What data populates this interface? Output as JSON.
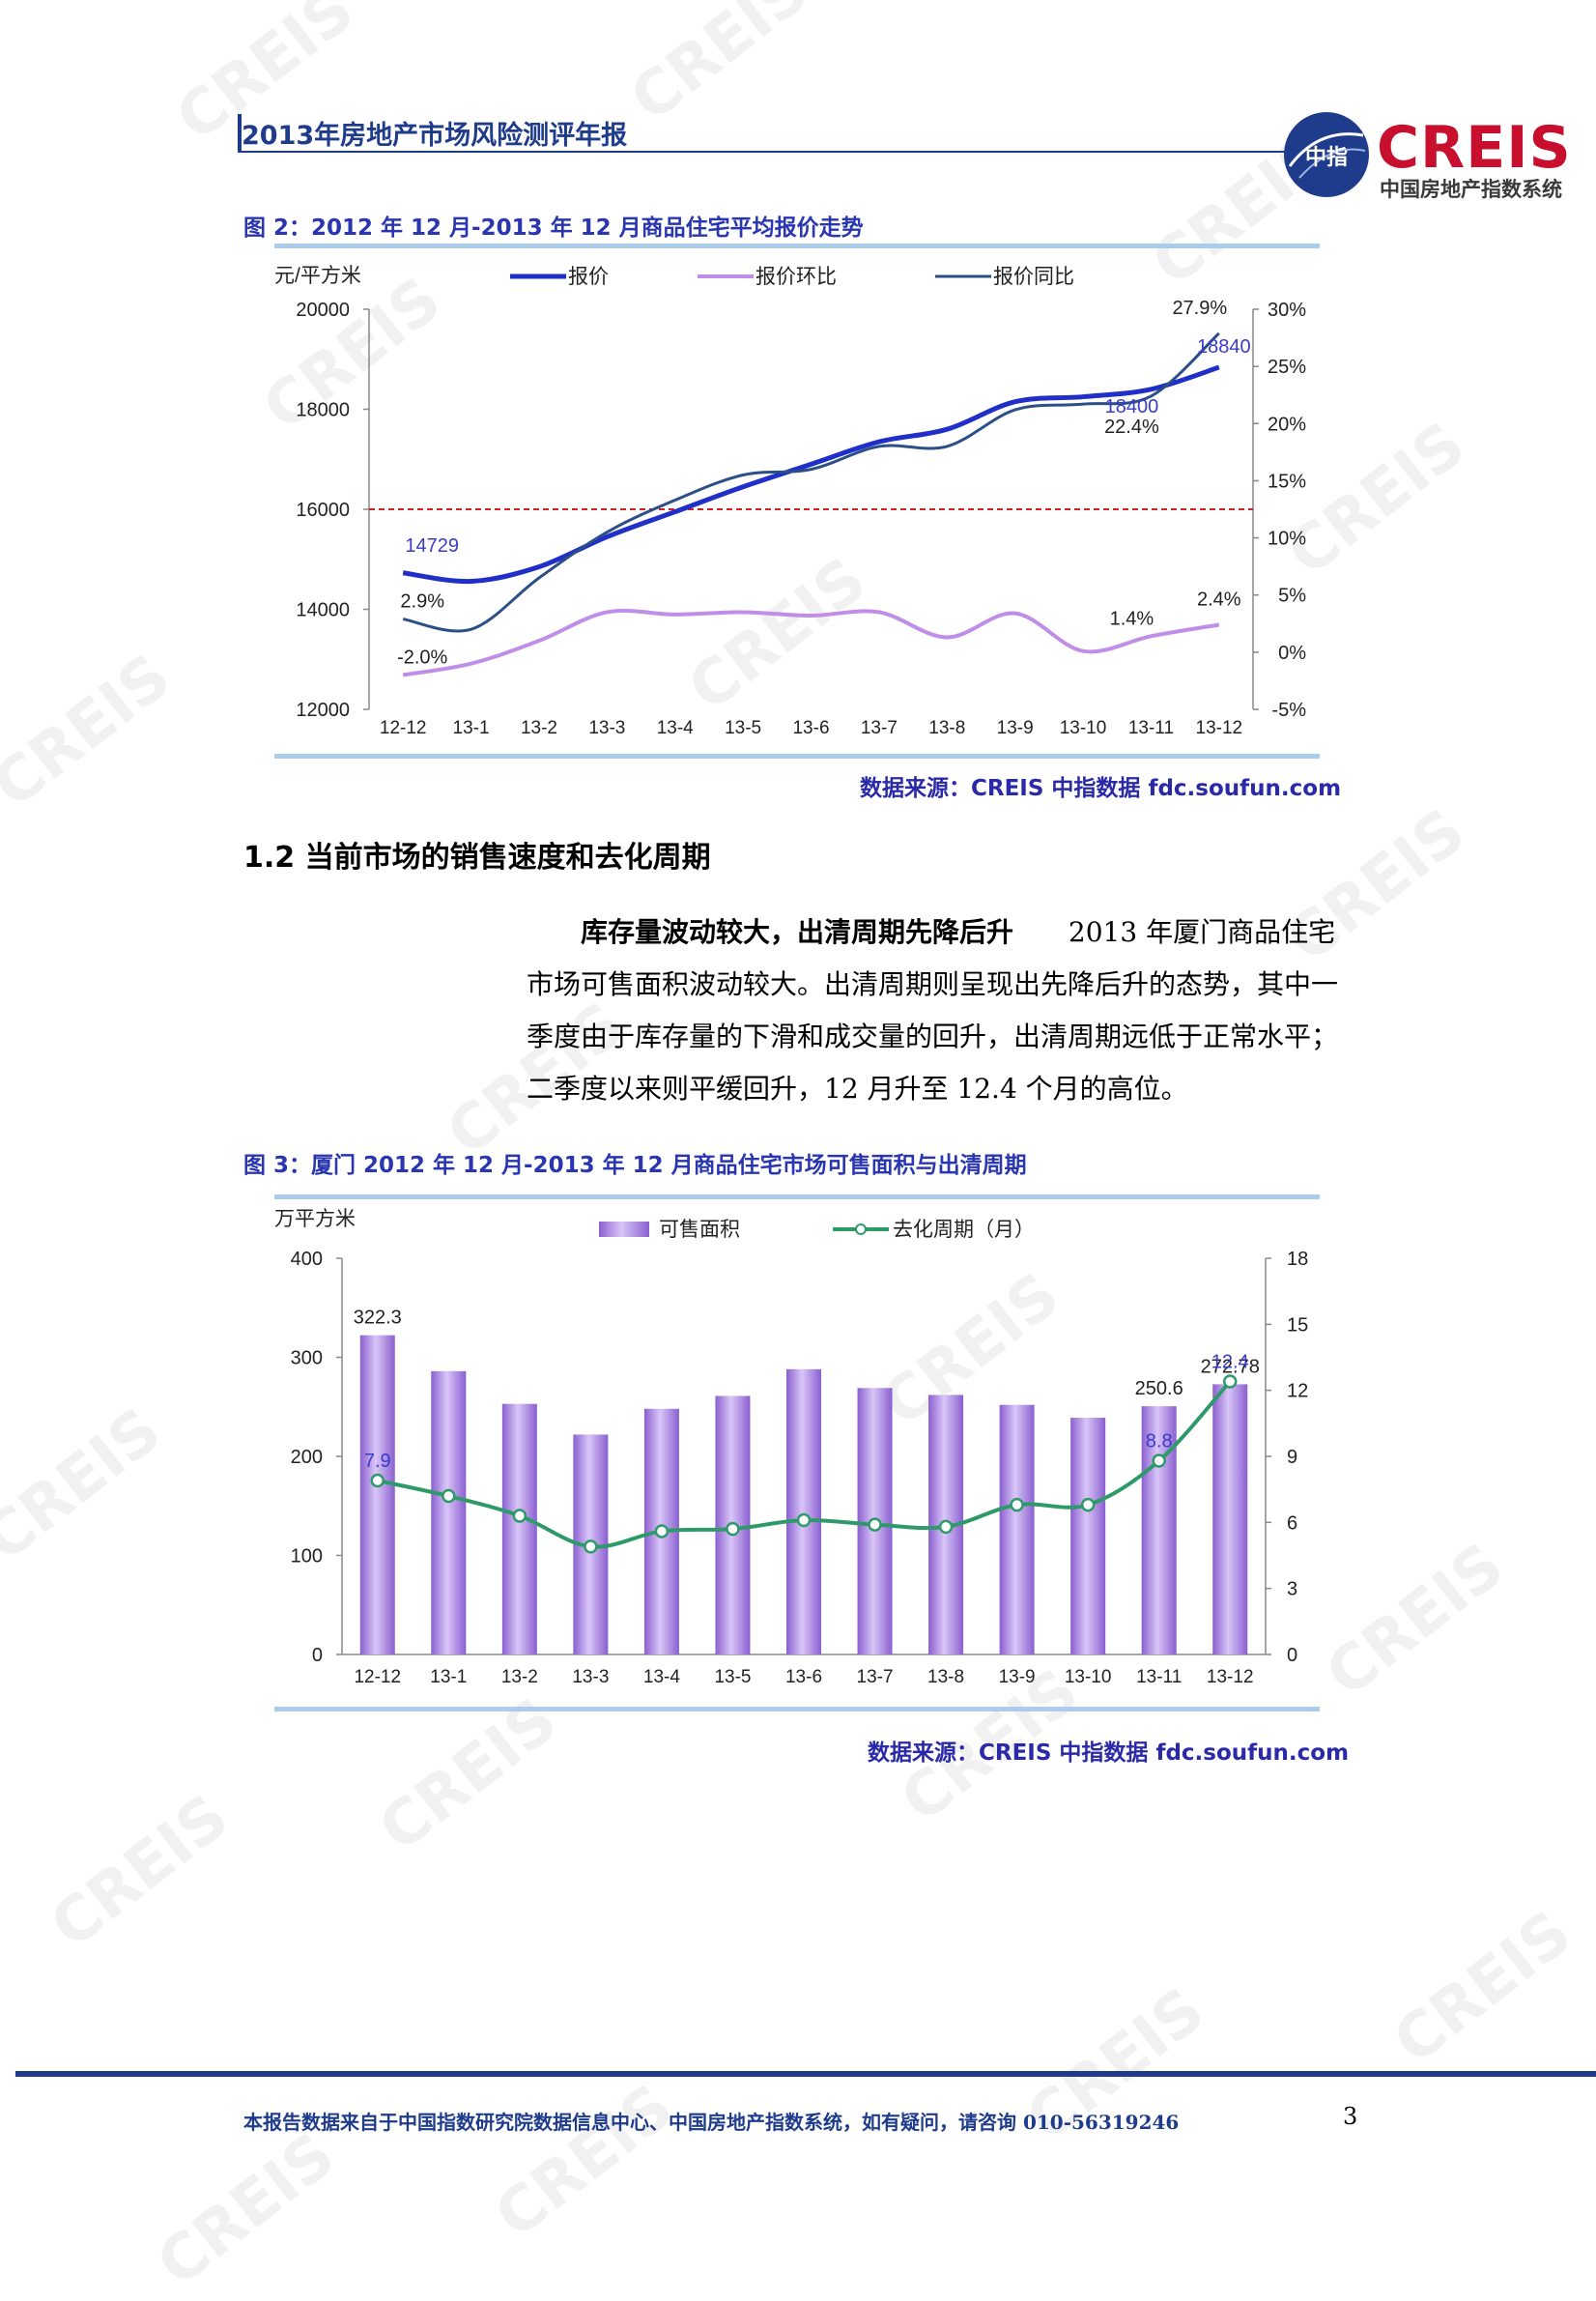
{
  "header": {
    "title": "2013年房地产市场风险测评年报",
    "logo_text": "CREIS",
    "logo_subtitle": "中国房地产指数系统",
    "logo_glyph": "中指",
    "brand_color": "#1f3c8c",
    "logo_color": "#c8102e"
  },
  "watermark": {
    "text": "CREIS"
  },
  "figure2": {
    "title": "图 2：2012 年 12 月-2013 年 12 月商品住宅平均报价走势",
    "source": "数据来源：CREIS 中指数据 fdc.soufun.com"
  },
  "section": {
    "heading": "1.2 当前市场的销售速度和去化周期",
    "lead": "库存量波动较大，出清周期先降后升",
    "text_line1": "2013 年厦门商品住宅",
    "text_line2": "市场可售面积波动较大。出清周期则呈现出先降后升的态势，其中一",
    "text_line3": "季度由于库存量的下滑和成交量的回升，出清周期远低于正常水平；",
    "text_line4": "二季度以来则平缓回升，12 月升至 12.4 个月的高位。"
  },
  "figure3": {
    "title": "图 3：厦门 2012 年 12 月-2013 年 12 月商品住宅市场可售面积与出清周期",
    "source": "数据来源：CREIS 中指数据 fdc.soufun.com"
  },
  "footer": {
    "text": "本报告数据来自于中国指数研究院数据信息中心、中国房地产指数系统，如有疑问，请咨询 010-56319246",
    "page": "3"
  },
  "chart_data": [
    {
      "type": "line",
      "ylabel_left": "元/平方米",
      "ylim_left": [
        12000,
        20000
      ],
      "yticks_left": [
        "20000",
        "18000",
        "16000",
        "14000",
        "12000"
      ],
      "ylim_right": [
        -5,
        30
      ],
      "yticks_right": [
        "30%",
        "25%",
        "20%",
        "15%",
        "10%",
        "5%",
        "0%",
        "-5%"
      ],
      "categories": [
        "12-12",
        "13-1",
        "13-2",
        "13-3",
        "13-4",
        "13-5",
        "13-6",
        "13-7",
        "13-8",
        "13-9",
        "13-10",
        "13-11",
        "13-12"
      ],
      "series": [
        {
          "name": "报价",
          "axis": "left",
          "color": "#1f2fc8",
          "values": [
            14729,
            14560,
            14850,
            15450,
            15950,
            16450,
            16900,
            17350,
            17600,
            18150,
            18250,
            18400,
            18840
          ]
        },
        {
          "name": "报价环比",
          "axis": "right",
          "color": "#c08ee8",
          "values": [
            -2.0,
            -1.0,
            1.0,
            3.5,
            3.3,
            3.5,
            3.2,
            3.5,
            1.3,
            3.4,
            0.1,
            1.4,
            2.4
          ]
        },
        {
          "name": "报价同比",
          "axis": "right",
          "color": "#2b4f86",
          "values": [
            2.9,
            2.0,
            6.5,
            10.5,
            13.3,
            15.5,
            16.0,
            18.0,
            18.0,
            21.2,
            21.7,
            22.4,
            27.9
          ]
        }
      ],
      "reference_line": {
        "axis": "left",
        "value": 16000,
        "color": "#d02020"
      },
      "data_labels": [
        {
          "series": "报价",
          "index": 0,
          "text": "14729"
        },
        {
          "series": "报价",
          "index": 11,
          "text": "18400"
        },
        {
          "series": "报价",
          "index": 12,
          "text": "18840"
        },
        {
          "series": "报价环比",
          "index": 0,
          "text": "-2.0%"
        },
        {
          "series": "报价环比",
          "index": 11,
          "text": "1.4%"
        },
        {
          "series": "报价环比",
          "index": 12,
          "text": "2.4%"
        },
        {
          "series": "报价同比",
          "index": 0,
          "text": "2.9%"
        },
        {
          "series": "报价同比",
          "index": 11,
          "text": "22.4%"
        },
        {
          "series": "报价同比",
          "index": 12,
          "text": "27.9%"
        }
      ],
      "legend_position": "top"
    },
    {
      "type": "bar",
      "ylabel_left": "万平方米",
      "ylim_left": [
        0,
        400
      ],
      "yticks_left": [
        "400",
        "300",
        "200",
        "100",
        "0"
      ],
      "ylim_right": [
        0,
        18
      ],
      "yticks_right": [
        "18",
        "15",
        "12",
        "9",
        "6",
        "3",
        "0"
      ],
      "categories": [
        "12-12",
        "13-1",
        "13-2",
        "13-3",
        "13-4",
        "13-5",
        "13-6",
        "13-7",
        "13-8",
        "13-9",
        "13-10",
        "13-11",
        "13-12"
      ],
      "series": [
        {
          "name": "可售面积",
          "type": "bar",
          "axis": "left",
          "color": "#a77ee0",
          "values": [
            322.3,
            286,
            253,
            222,
            248,
            261,
            288,
            269,
            262,
            252,
            239,
            250.6,
            272.78
          ]
        },
        {
          "name": "去化周期（月）",
          "type": "line",
          "axis": "right",
          "color": "#2e9a6a",
          "values": [
            7.9,
            7.2,
            6.3,
            4.9,
            5.6,
            5.7,
            6.1,
            5.9,
            5.8,
            6.8,
            6.8,
            8.8,
            12.4
          ]
        }
      ],
      "data_labels": [
        {
          "series": "可售面积",
          "index": 0,
          "text": "322.3"
        },
        {
          "series": "可售面积",
          "index": 11,
          "text": "250.6"
        },
        {
          "series": "可售面积",
          "index": 12,
          "text": "272.78"
        },
        {
          "series": "去化周期（月）",
          "index": 0,
          "text": "7.9"
        },
        {
          "series": "去化周期（月）",
          "index": 11,
          "text": "8.8"
        },
        {
          "series": "去化周期（月）",
          "index": 12,
          "text": "12.4"
        }
      ],
      "legend_position": "top"
    }
  ]
}
